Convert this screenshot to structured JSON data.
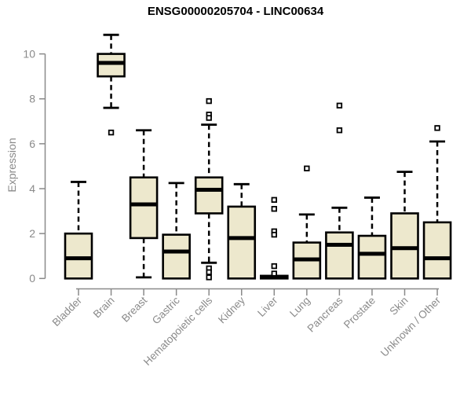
{
  "chart_data": {
    "type": "box",
    "title": "ENSG00000205704 - LINC00634",
    "ylabel": "Expression",
    "xlabel": "",
    "ylim": [
      0,
      11
    ],
    "yticks": [
      0,
      2,
      4,
      6,
      8,
      10
    ],
    "grid": "off",
    "legend": "none",
    "categories": [
      "Bladder",
      "Brain",
      "Breast",
      "Gastric",
      "Hematopoietic cells",
      "Kidney",
      "Liver",
      "Lung",
      "Pancreas",
      "Prostate",
      "Skin",
      "Unknown / Other"
    ],
    "series": [
      {
        "category": "Bladder",
        "whisker_low": 0,
        "q1": 0,
        "median": 0.9,
        "q3": 2.0,
        "whisker_high": 4.3,
        "outliers": []
      },
      {
        "category": "Brain",
        "whisker_low": 7.6,
        "q1": 9.0,
        "median": 9.6,
        "q3": 10.0,
        "whisker_high": 10.85,
        "outliers": [
          6.5
        ]
      },
      {
        "category": "Breast",
        "whisker_low": 0.05,
        "q1": 1.8,
        "median": 3.3,
        "q3": 4.5,
        "whisker_high": 6.6,
        "outliers": []
      },
      {
        "category": "Gastric",
        "whisker_low": 0,
        "q1": 0,
        "median": 1.2,
        "q3": 1.95,
        "whisker_high": 4.25,
        "outliers": []
      },
      {
        "category": "Hematopoietic cells",
        "whisker_low": 0.7,
        "q1": 2.9,
        "median": 3.95,
        "q3": 4.5,
        "whisker_high": 6.85,
        "outliers": [
          7.9,
          7.3,
          7.15,
          0.45,
          0.28,
          0.05
        ]
      },
      {
        "category": "Kidney",
        "whisker_low": 0,
        "q1": 0,
        "median": 1.8,
        "q3": 3.2,
        "whisker_high": 4.2,
        "outliers": []
      },
      {
        "category": "Liver",
        "whisker_low": 0,
        "q1": 0,
        "median": 0.05,
        "q3": 0.12,
        "whisker_high": 0.12,
        "outliers": [
          3.5,
          3.1,
          2.1,
          1.95,
          0.55,
          0.22
        ]
      },
      {
        "category": "Lung",
        "whisker_low": 0,
        "q1": 0,
        "median": 0.85,
        "q3": 1.6,
        "whisker_high": 2.85,
        "outliers": [
          4.9
        ]
      },
      {
        "category": "Pancreas",
        "whisker_low": 0,
        "q1": 0,
        "median": 1.5,
        "q3": 2.05,
        "whisker_high": 3.15,
        "outliers": [
          7.7,
          6.6
        ]
      },
      {
        "category": "Prostate",
        "whisker_low": 0,
        "q1": 0,
        "median": 1.1,
        "q3": 1.9,
        "whisker_high": 3.6,
        "outliers": []
      },
      {
        "category": "Skin",
        "whisker_low": 0,
        "q1": 0,
        "median": 1.35,
        "q3": 2.9,
        "whisker_high": 4.75,
        "outliers": []
      },
      {
        "category": "Unknown / Other",
        "whisker_low": 0,
        "q1": 0,
        "median": 0.9,
        "q3": 2.5,
        "whisker_high": 6.1,
        "outliers": [
          6.7
        ]
      }
    ],
    "colors": {
      "box_fill": "#EDE8CD",
      "box_stroke": "#000000",
      "axis": "#8a8a8a",
      "title": "#000000",
      "background": "#ffffff"
    }
  }
}
